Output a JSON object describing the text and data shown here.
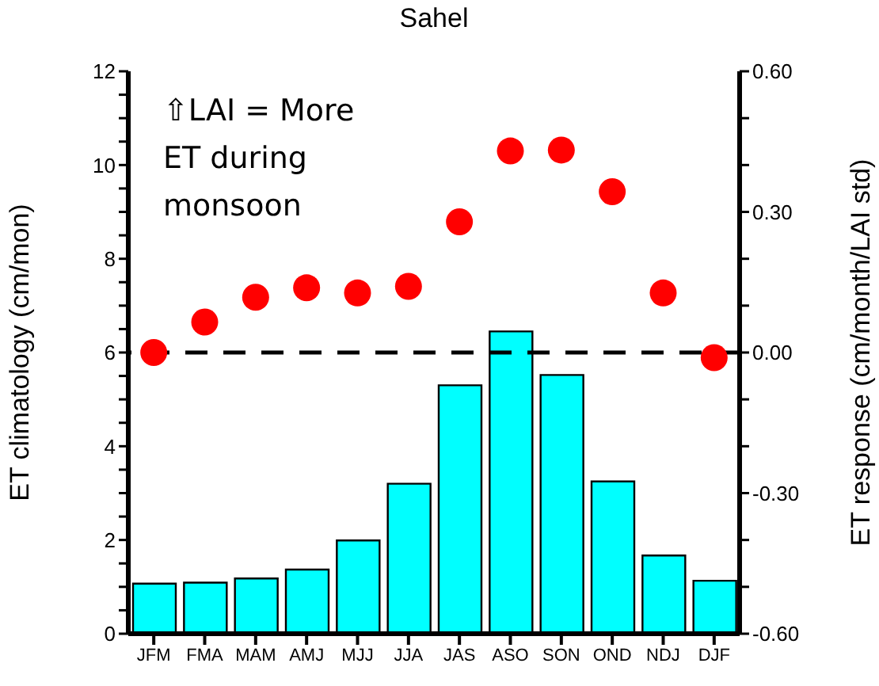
{
  "chart_data": {
    "type": "bar",
    "title": "Sahel",
    "ylabel": "ET climatology (cm/mon)",
    "y2label": "ET response (cm/month/LAI std)",
    "categories": [
      "JFM",
      "FMA",
      "MAM",
      "AMJ",
      "MJJ",
      "JJA",
      "JAS",
      "ASO",
      "SON",
      "OND",
      "NDJ",
      "DJF"
    ],
    "series": [
      {
        "color": "#00ffff",
        "values": [
          1.07,
          1.09,
          1.18,
          1.37,
          1.99,
          3.2,
          5.3,
          6.45,
          5.52,
          3.25,
          1.67,
          1.13
        ]
      },
      {
        "type": "scatter",
        "axis": "y2",
        "color": "#ff0000",
        "marker": "circle",
        "values": [
          0.0,
          0.065,
          0.118,
          0.138,
          0.127,
          0.141,
          0.279,
          0.43,
          0.432,
          0.343,
          0.127,
          -0.011
        ]
      }
    ],
    "ylim": [
      0,
      12
    ],
    "yticks": [
      0,
      {
        "value": 0.5,
        "label": null
      },
      {
        "value": 1,
        "label": null
      },
      {
        "value": 1.5,
        "label": null
      },
      2,
      {
        "value": 2.5,
        "label": null
      },
      {
        "value": 3,
        "label": null
      },
      {
        "value": 3.5,
        "label": null
      },
      4,
      {
        "value": 4.5,
        "label": null
      },
      {
        "value": 5,
        "label": null
      },
      {
        "value": 5.5,
        "label": null
      },
      6,
      {
        "value": 6.5,
        "label": null
      },
      {
        "value": 7,
        "label": null
      },
      {
        "value": 7.5,
        "label": null
      },
      8,
      {
        "value": 8.5,
        "label": null
      },
      {
        "value": 9,
        "label": null
      },
      {
        "value": 9.5,
        "label": null
      },
      10,
      {
        "value": 10.5,
        "label": null
      },
      {
        "value": 11,
        "label": null
      },
      {
        "value": 11.5,
        "label": null
      },
      12
    ],
    "y2lim": [
      -0.6,
      0.6
    ],
    "y2ticks": [
      {
        "value": -0.6,
        "label": "-0.60"
      },
      {
        "value": -0.5,
        "label": null
      },
      {
        "value": -0.4,
        "label": null
      },
      {
        "value": -0.3,
        "label": "-0.30"
      },
      {
        "value": -0.2,
        "label": null
      },
      {
        "value": -0.1,
        "label": null
      },
      {
        "value": 0,
        "label": "0.00"
      },
      {
        "value": 0.1,
        "label": null
      },
      {
        "value": 0.2,
        "label": null
      },
      {
        "value": 0.3,
        "label": "0.30"
      },
      {
        "value": 0.4,
        "label": null
      },
      {
        "value": 0.5,
        "label": null
      },
      {
        "value": 0.6,
        "label": "0.60"
      }
    ],
    "ref_lines": [
      {
        "axis": "y2",
        "value": 0,
        "color": "#000000",
        "line_style": "dashed"
      }
    ],
    "annotations": [
      "⇧LAI = More\nET during\nmonsoon"
    ]
  }
}
